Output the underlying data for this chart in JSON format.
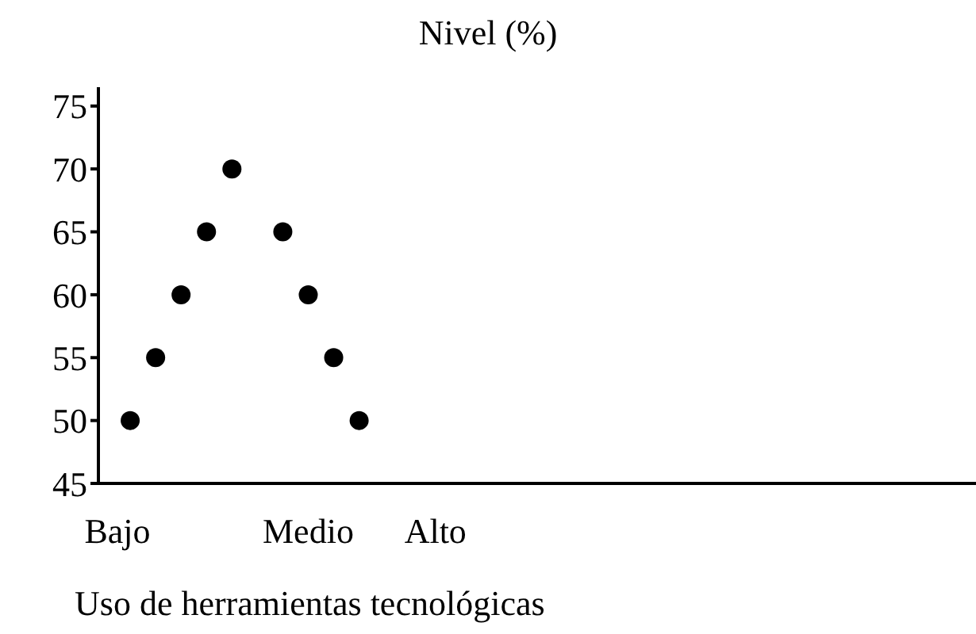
{
  "chart_data": {
    "type": "scatter",
    "title": "Nivel (%)",
    "xlabel": "Uso de herramientas tecnológicas",
    "categories": [
      null,
      "Bajo",
      null,
      null,
      null,
      null,
      null,
      null,
      null,
      null,
      null,
      null,
      null,
      null,
      null,
      null,
      "Medio",
      null,
      null,
      null,
      null,
      null,
      null,
      null,
      null,
      null,
      "Alto",
      null,
      null,
      null,
      null,
      null,
      null,
      null,
      null,
      null,
      null,
      null,
      null,
      null,
      null,
      null,
      null,
      null,
      null,
      null,
      null,
      null,
      null,
      null,
      null,
      null,
      null,
      null,
      null,
      null,
      null,
      null,
      null,
      null,
      null,
      null,
      null,
      null,
      null,
      null,
      null,
      null,
      null
    ],
    "series": [
      {
        "color": "#000000",
        "values": [
          null,
          null,
          50,
          null,
          55,
          null,
          60,
          null,
          65,
          null,
          70,
          null,
          null,
          null,
          65,
          null,
          60,
          null,
          55,
          null,
          50,
          null,
          null,
          null,
          null,
          null,
          null,
          null,
          null,
          null,
          null,
          null,
          null,
          null,
          null,
          null,
          null,
          null,
          null,
          null,
          null,
          null,
          null,
          null,
          null,
          null,
          null,
          null,
          null,
          null,
          null,
          null,
          null,
          null,
          null,
          null,
          null,
          null,
          null,
          null,
          null,
          null,
          null,
          null,
          null,
          null,
          null,
          null,
          null
        ]
      }
    ],
    "ylim": [
      45,
      76.5
    ],
    "yticks": [
      45,
      50,
      55,
      60,
      65,
      70,
      75
    ],
    "grid": false,
    "legend": false,
    "marker": "circle"
  }
}
